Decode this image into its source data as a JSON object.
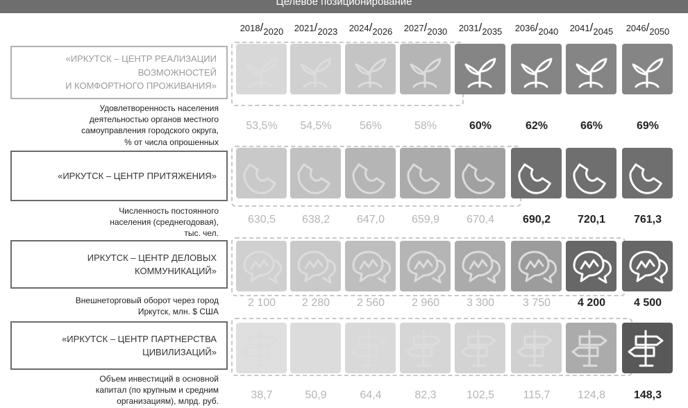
{
  "header": {
    "title": "Целевое позиционирование"
  },
  "periods": [
    {
      "a": "2018",
      "b": "2020"
    },
    {
      "a": "2021",
      "b": "2023"
    },
    {
      "a": "2024",
      "b": "2026"
    },
    {
      "a": "2027",
      "b": "2030"
    },
    {
      "a": "2031",
      "b": "2035"
    },
    {
      "a": "2036",
      "b": "2040"
    },
    {
      "a": "2041",
      "b": "2045"
    },
    {
      "a": "2046",
      "b": "2050"
    }
  ],
  "rows": [
    {
      "goal_lines": [
        "«ИРКУТСК – ЦЕНТР РЕАЛИЗАЦИИ",
        "ВОЗМОЖНОСТЕЙ",
        "И КОМФОРТНОГО ПРОЖИВАНИЯ»"
      ],
      "metric_lines": [
        "Удовлетворенность населения",
        "деятельностью органов местного",
        "самоуправления городского округа,",
        "% от числа опрошенных"
      ],
      "icon": "sprout-icon",
      "values": [
        "53,5%",
        "54,5%",
        "56%",
        "58%",
        "60%",
        "62%",
        "66%",
        "69%"
      ],
      "levels": [
        0.15,
        0.2,
        0.28,
        0.38,
        0.7,
        0.7,
        0.7,
        0.7
      ]
    },
    {
      "goal_lines": [
        "«ИРКУТСК – ЦЕНТР ПРИТЯЖЕНИЯ»"
      ],
      "metric_lines": [
        "Численность постоянного",
        "населения (среднегодовая),",
        "тыс. чел."
      ],
      "icon": "magnet-icon",
      "values": [
        "630,5",
        "638,2",
        "647,0",
        "659,9",
        "670,4",
        "690,2",
        "720,1",
        "761,3"
      ],
      "levels": [
        0.25,
        0.3,
        0.38,
        0.45,
        0.52,
        0.85,
        0.85,
        0.85
      ]
    },
    {
      "goal_lines": [
        "ИРКУТСК – ЦЕНТР ДЕЛОВЫХ",
        "КОММУНИКАЦИЙ»"
      ],
      "metric_lines": [
        "Внешнеторговый оборот через город",
        "Иркутск, млн. $ США"
      ],
      "icon": "chat-bubbles-icon",
      "values": [
        "2 100",
        "2 280",
        "2 560",
        "2 960",
        "3 300",
        "3 750",
        "4 200",
        "4 500"
      ],
      "levels": [
        0.2,
        0.25,
        0.32,
        0.38,
        0.45,
        0.55,
        0.9,
        0.9
      ]
    },
    {
      "goal_lines": [
        "«ИРКУТСК – ЦЕНТР ПАРТНЕРСТВА",
        "ЦИВИЛИЗАЦИЙ»"
      ],
      "metric_lines": [
        "Объем инвестиций в основной",
        "капитал (по крупным и средним",
        "организациям), млрд. руб."
      ],
      "icon": "signpost-icon",
      "values": [
        "38,7",
        "50,9",
        "64,4",
        "82,3",
        "102,5",
        "115,7",
        "124,8",
        "148,3"
      ],
      "levels": [
        0.1,
        0.12,
        0.14,
        0.16,
        0.18,
        0.2,
        0.45,
        1.0
      ]
    }
  ]
}
